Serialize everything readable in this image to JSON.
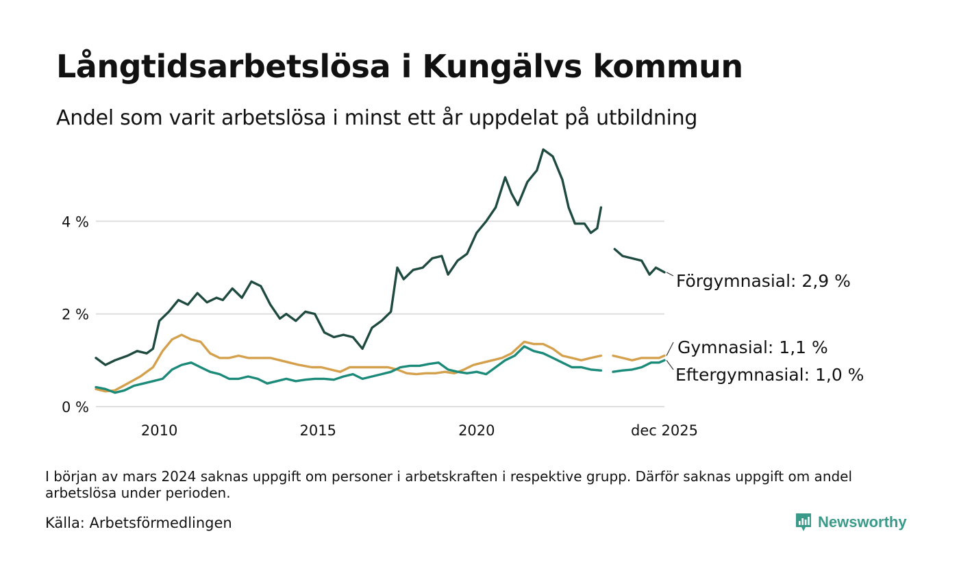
{
  "title": "Långtidsarbetslösa i Kungälvs kommun",
  "subtitle": "Andel som varit arbetslösa i minst ett år uppdelat på utbildning",
  "note": "I början av mars 2024 saknas uppgift om personer i arbetskraften i respektive grupp. Därför saknas uppgift om andel arbetslösa under perioden.",
  "source": "Källa: Arbetsförmedlingen",
  "brand": {
    "name": "Newsworthy",
    "color": "#3a9a8a"
  },
  "chart_data": {
    "type": "line",
    "title": "Långtidsarbetslösa i Kungälvs kommun",
    "xlabel": "",
    "ylabel": "",
    "x_range": [
      2008.0,
      2025.92
    ],
    "ylim": [
      0,
      5.6
    ],
    "y_ticks": [
      {
        "value": 0,
        "label": "0 %"
      },
      {
        "value": 2,
        "label": "2 %"
      },
      {
        "value": 4,
        "label": "4 %"
      }
    ],
    "x_ticks": [
      {
        "value": 2010,
        "label": "2010"
      },
      {
        "value": 2015,
        "label": "2015"
      },
      {
        "value": 2020,
        "label": "2020"
      },
      {
        "value": 2025.92,
        "label": "dec 2025"
      }
    ],
    "grid": "horizontal",
    "gap": [
      2024.0,
      2024.3
    ],
    "series": [
      {
        "name": "Förgymnasial",
        "label": "Förgymnasial: 2,9 %",
        "color": "#1f4a40",
        "points": [
          [
            2008.0,
            1.05
          ],
          [
            2008.3,
            0.9
          ],
          [
            2008.6,
            1.0
          ],
          [
            2009.0,
            1.1
          ],
          [
            2009.3,
            1.2
          ],
          [
            2009.6,
            1.15
          ],
          [
            2009.8,
            1.25
          ],
          [
            2010.0,
            1.85
          ],
          [
            2010.3,
            2.05
          ],
          [
            2010.6,
            2.3
          ],
          [
            2010.9,
            2.2
          ],
          [
            2011.2,
            2.45
          ],
          [
            2011.5,
            2.25
          ],
          [
            2011.8,
            2.35
          ],
          [
            2012.0,
            2.3
          ],
          [
            2012.3,
            2.55
          ],
          [
            2012.6,
            2.35
          ],
          [
            2012.9,
            2.7
          ],
          [
            2013.2,
            2.6
          ],
          [
            2013.5,
            2.2
          ],
          [
            2013.8,
            1.9
          ],
          [
            2014.0,
            2.0
          ],
          [
            2014.3,
            1.85
          ],
          [
            2014.6,
            2.05
          ],
          [
            2014.9,
            2.0
          ],
          [
            2015.2,
            1.6
          ],
          [
            2015.5,
            1.5
          ],
          [
            2015.8,
            1.55
          ],
          [
            2016.1,
            1.5
          ],
          [
            2016.4,
            1.25
          ],
          [
            2016.7,
            1.7
          ],
          [
            2017.0,
            1.85
          ],
          [
            2017.3,
            2.05
          ],
          [
            2017.5,
            3.0
          ],
          [
            2017.7,
            2.75
          ],
          [
            2018.0,
            2.95
          ],
          [
            2018.3,
            3.0
          ],
          [
            2018.6,
            3.2
          ],
          [
            2018.9,
            3.25
          ],
          [
            2019.1,
            2.85
          ],
          [
            2019.4,
            3.15
          ],
          [
            2019.7,
            3.3
          ],
          [
            2020.0,
            3.75
          ],
          [
            2020.3,
            4.0
          ],
          [
            2020.6,
            4.3
          ],
          [
            2020.9,
            4.95
          ],
          [
            2021.1,
            4.6
          ],
          [
            2021.3,
            4.35
          ],
          [
            2021.6,
            4.85
          ],
          [
            2021.9,
            5.1
          ],
          [
            2022.1,
            5.55
          ],
          [
            2022.4,
            5.4
          ],
          [
            2022.7,
            4.9
          ],
          [
            2022.9,
            4.3
          ],
          [
            2023.1,
            3.95
          ],
          [
            2023.4,
            3.95
          ],
          [
            2023.6,
            3.75
          ],
          [
            2023.8,
            3.85
          ],
          [
            2023.92,
            4.3
          ],
          [
            null,
            null
          ],
          [
            2024.35,
            3.4
          ],
          [
            2024.6,
            3.25
          ],
          [
            2024.9,
            3.2
          ],
          [
            2025.2,
            3.15
          ],
          [
            2025.45,
            2.85
          ],
          [
            2025.65,
            3.0
          ],
          [
            2025.92,
            2.9
          ]
        ]
      },
      {
        "name": "Gymnasial",
        "label": "Gymnasial: 1,1 %",
        "color": "#d4a04c",
        "points": [
          [
            2008.0,
            0.38
          ],
          [
            2008.3,
            0.33
          ],
          [
            2008.6,
            0.35
          ],
          [
            2009.0,
            0.5
          ],
          [
            2009.4,
            0.65
          ],
          [
            2009.8,
            0.85
          ],
          [
            2010.1,
            1.2
          ],
          [
            2010.4,
            1.45
          ],
          [
            2010.7,
            1.55
          ],
          [
            2011.0,
            1.45
          ],
          [
            2011.3,
            1.4
          ],
          [
            2011.6,
            1.15
          ],
          [
            2011.9,
            1.05
          ],
          [
            2012.2,
            1.05
          ],
          [
            2012.5,
            1.1
          ],
          [
            2012.8,
            1.05
          ],
          [
            2013.1,
            1.05
          ],
          [
            2013.5,
            1.05
          ],
          [
            2013.8,
            1.0
          ],
          [
            2014.1,
            0.95
          ],
          [
            2014.4,
            0.9
          ],
          [
            2014.8,
            0.85
          ],
          [
            2015.1,
            0.85
          ],
          [
            2015.4,
            0.8
          ],
          [
            2015.7,
            0.75
          ],
          [
            2016.0,
            0.85
          ],
          [
            2016.3,
            0.85
          ],
          [
            2016.6,
            0.85
          ],
          [
            2016.9,
            0.85
          ],
          [
            2017.2,
            0.85
          ],
          [
            2017.5,
            0.8
          ],
          [
            2017.8,
            0.72
          ],
          [
            2018.1,
            0.7
          ],
          [
            2018.4,
            0.72
          ],
          [
            2018.7,
            0.72
          ],
          [
            2019.0,
            0.75
          ],
          [
            2019.3,
            0.72
          ],
          [
            2019.6,
            0.8
          ],
          [
            2019.9,
            0.9
          ],
          [
            2020.2,
            0.95
          ],
          [
            2020.5,
            1.0
          ],
          [
            2020.8,
            1.05
          ],
          [
            2021.1,
            1.15
          ],
          [
            2021.5,
            1.4
          ],
          [
            2021.8,
            1.35
          ],
          [
            2022.1,
            1.35
          ],
          [
            2022.4,
            1.25
          ],
          [
            2022.7,
            1.1
          ],
          [
            2023.0,
            1.05
          ],
          [
            2023.3,
            1.0
          ],
          [
            2023.6,
            1.05
          ],
          [
            2023.92,
            1.1
          ],
          [
            null,
            null
          ],
          [
            2024.3,
            1.1
          ],
          [
            2024.6,
            1.05
          ],
          [
            2024.9,
            1.0
          ],
          [
            2025.2,
            1.05
          ],
          [
            2025.5,
            1.05
          ],
          [
            2025.75,
            1.05
          ],
          [
            2025.92,
            1.1
          ]
        ]
      },
      {
        "name": "Eftergymnasial",
        "label": "Eftergymnasial: 1,0 %",
        "color": "#1b8a78",
        "points": [
          [
            2008.0,
            0.42
          ],
          [
            2008.3,
            0.38
          ],
          [
            2008.6,
            0.3
          ],
          [
            2008.9,
            0.35
          ],
          [
            2009.2,
            0.45
          ],
          [
            2009.5,
            0.5
          ],
          [
            2009.8,
            0.55
          ],
          [
            2010.1,
            0.6
          ],
          [
            2010.4,
            0.8
          ],
          [
            2010.7,
            0.9
          ],
          [
            2011.0,
            0.95
          ],
          [
            2011.3,
            0.85
          ],
          [
            2011.6,
            0.75
          ],
          [
            2011.9,
            0.7
          ],
          [
            2012.2,
            0.6
          ],
          [
            2012.5,
            0.6
          ],
          [
            2012.8,
            0.65
          ],
          [
            2013.1,
            0.6
          ],
          [
            2013.4,
            0.5
          ],
          [
            2013.7,
            0.55
          ],
          [
            2014.0,
            0.6
          ],
          [
            2014.3,
            0.55
          ],
          [
            2014.6,
            0.58
          ],
          [
            2014.9,
            0.6
          ],
          [
            2015.2,
            0.6
          ],
          [
            2015.5,
            0.58
          ],
          [
            2015.8,
            0.65
          ],
          [
            2016.1,
            0.7
          ],
          [
            2016.4,
            0.6
          ],
          [
            2016.7,
            0.65
          ],
          [
            2017.0,
            0.7
          ],
          [
            2017.3,
            0.75
          ],
          [
            2017.6,
            0.85
          ],
          [
            2017.9,
            0.88
          ],
          [
            2018.2,
            0.88
          ],
          [
            2018.5,
            0.92
          ],
          [
            2018.8,
            0.95
          ],
          [
            2019.1,
            0.8
          ],
          [
            2019.4,
            0.75
          ],
          [
            2019.7,
            0.72
          ],
          [
            2020.0,
            0.75
          ],
          [
            2020.3,
            0.7
          ],
          [
            2020.6,
            0.85
          ],
          [
            2020.9,
            1.0
          ],
          [
            2021.2,
            1.1
          ],
          [
            2021.5,
            1.3
          ],
          [
            2021.8,
            1.2
          ],
          [
            2022.1,
            1.15
          ],
          [
            2022.4,
            1.05
          ],
          [
            2022.7,
            0.95
          ],
          [
            2023.0,
            0.85
          ],
          [
            2023.3,
            0.85
          ],
          [
            2023.6,
            0.8
          ],
          [
            2023.92,
            0.78
          ],
          [
            null,
            null
          ],
          [
            2024.3,
            0.75
          ],
          [
            2024.6,
            0.78
          ],
          [
            2024.9,
            0.8
          ],
          [
            2025.2,
            0.85
          ],
          [
            2025.5,
            0.95
          ],
          [
            2025.75,
            0.95
          ],
          [
            2025.92,
            1.0
          ]
        ]
      }
    ]
  }
}
